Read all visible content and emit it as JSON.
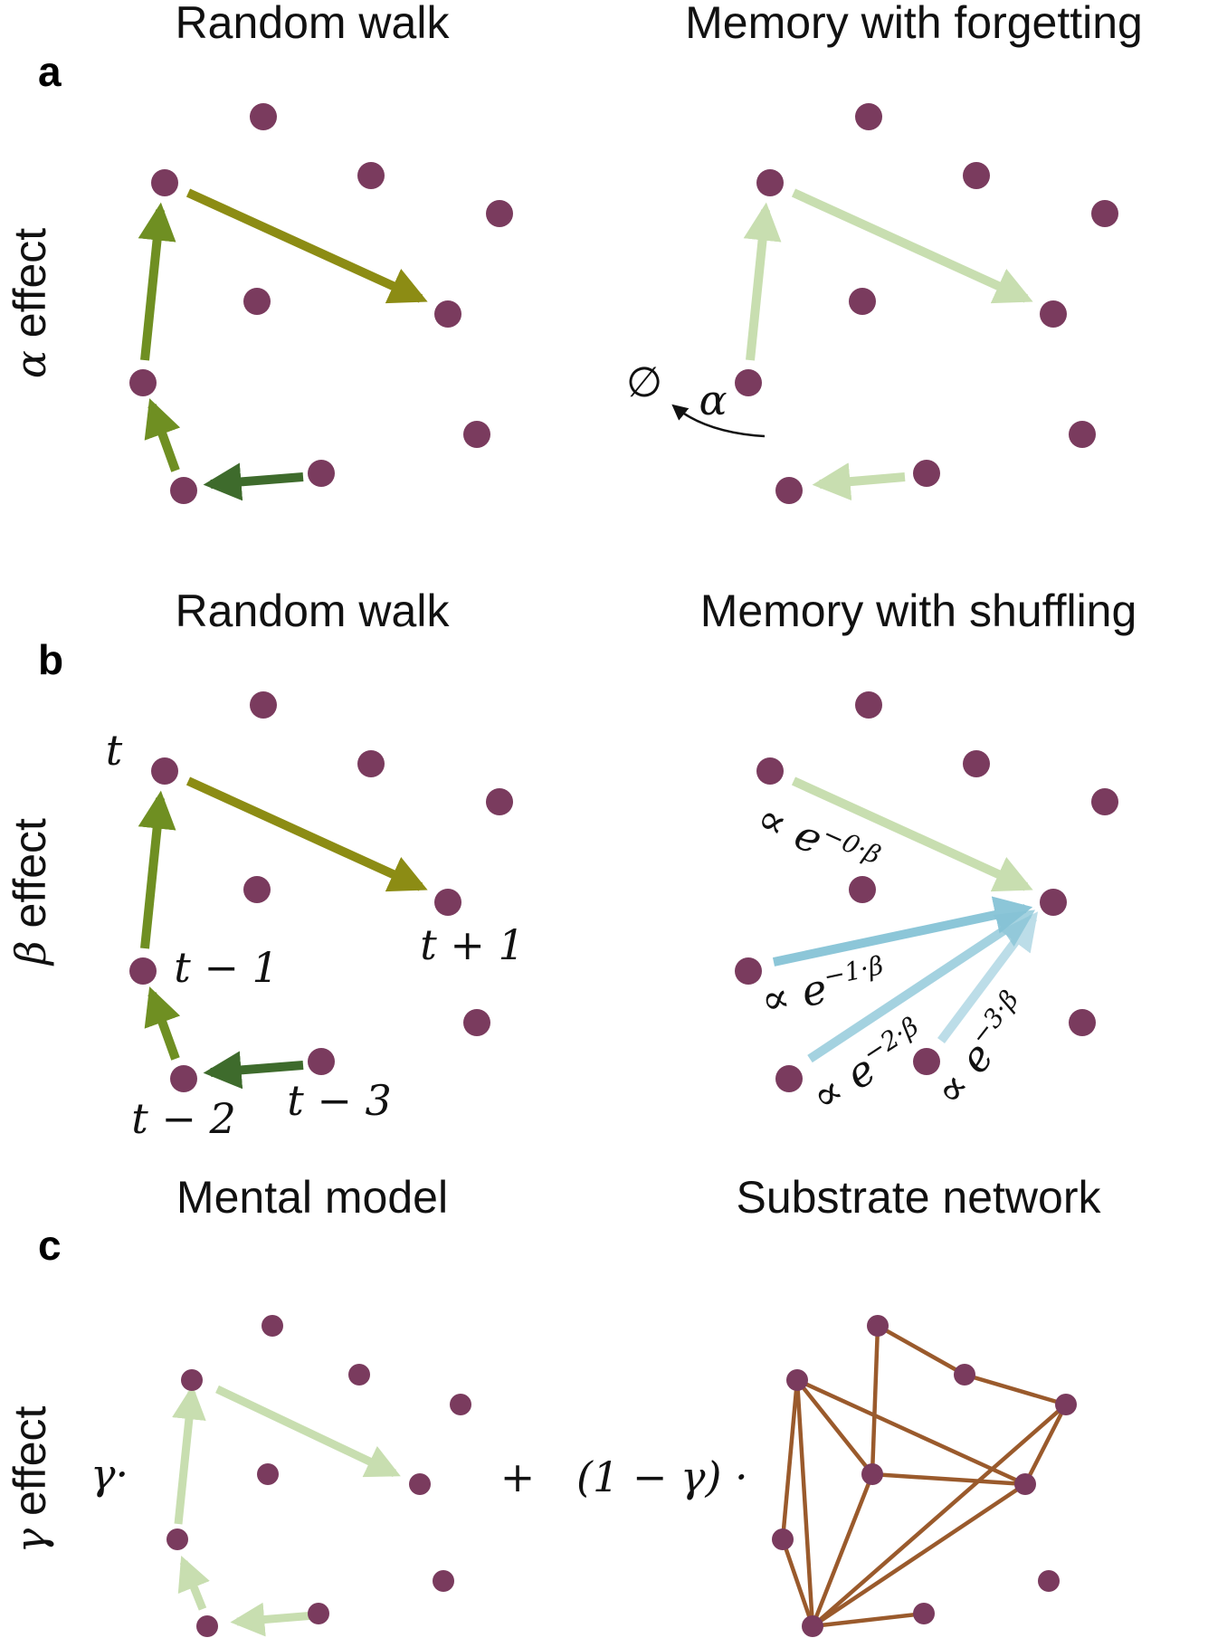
{
  "panels": {
    "a": {
      "label": "a",
      "row_label_greek": "α",
      "row_label_word": " effect",
      "left_title": "Random walk",
      "right_title": "Memory with forgetting",
      "forget_symbol": "∅",
      "forget_rate": "α"
    },
    "b": {
      "label": "b",
      "row_label_greek": "β",
      "row_label_word": " effect",
      "left_title": "Random walk",
      "right_title": "Memory with shuffling",
      "time_labels": {
        "t": "t",
        "t_plus_1": "t + 1",
        "t_minus_1": "t − 1",
        "t_minus_2": "t − 2",
        "t_minus_3": "t − 3"
      },
      "weight_prefix": "∝ e",
      "weights": [
        "−0·β",
        "−1·β",
        "−2·β",
        "−3·β"
      ]
    },
    "c": {
      "label": "c",
      "row_label_greek": "γ",
      "row_label_word": " effect",
      "left_title": "Mental model",
      "right_title": "Substrate network",
      "mental_coeff": "γ·",
      "plus": "+",
      "substrate_coeff": "(1 − γ) ·"
    }
  },
  "colors": {
    "node": "#7a3b5e",
    "walk_dark": "#3e6b2c",
    "walk_mid": "#6f8f22",
    "walk_olive": "#8c8c14",
    "memory_faded": "#c8deb0",
    "shuffle_blue": "#86c3d6",
    "substrate_edge": "#9a5a2c"
  }
}
